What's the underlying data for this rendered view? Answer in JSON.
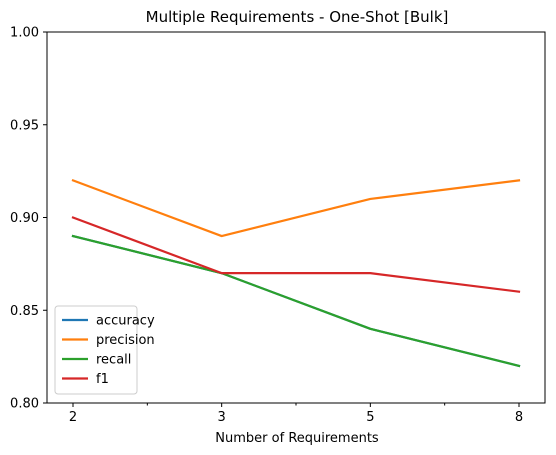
{
  "chart_data": {
    "type": "line",
    "title": "Multiple Requirements - One-Shot [Bulk]",
    "xlabel": "Number of Requirements",
    "ylabel": "",
    "categories": [
      "2",
      "3",
      "5",
      "8"
    ],
    "ylim": [
      0.8,
      1.0
    ],
    "yticks": [
      "0.80",
      "0.85",
      "0.90",
      "0.95",
      "1.00"
    ],
    "grid": false,
    "legend_position": "lower-left",
    "series": [
      {
        "name": "accuracy",
        "color": "#1f77b4",
        "values": [
          0.89,
          0.87,
          0.84,
          0.82
        ]
      },
      {
        "name": "precision",
        "color": "#ff7f0e",
        "values": [
          0.92,
          0.89,
          0.91,
          0.92
        ]
      },
      {
        "name": "recall",
        "color": "#2ca02c",
        "values": [
          0.89,
          0.87,
          0.84,
          0.82
        ]
      },
      {
        "name": "f1",
        "color": "#d62728",
        "values": [
          0.9,
          0.87,
          0.87,
          0.86
        ]
      }
    ]
  }
}
